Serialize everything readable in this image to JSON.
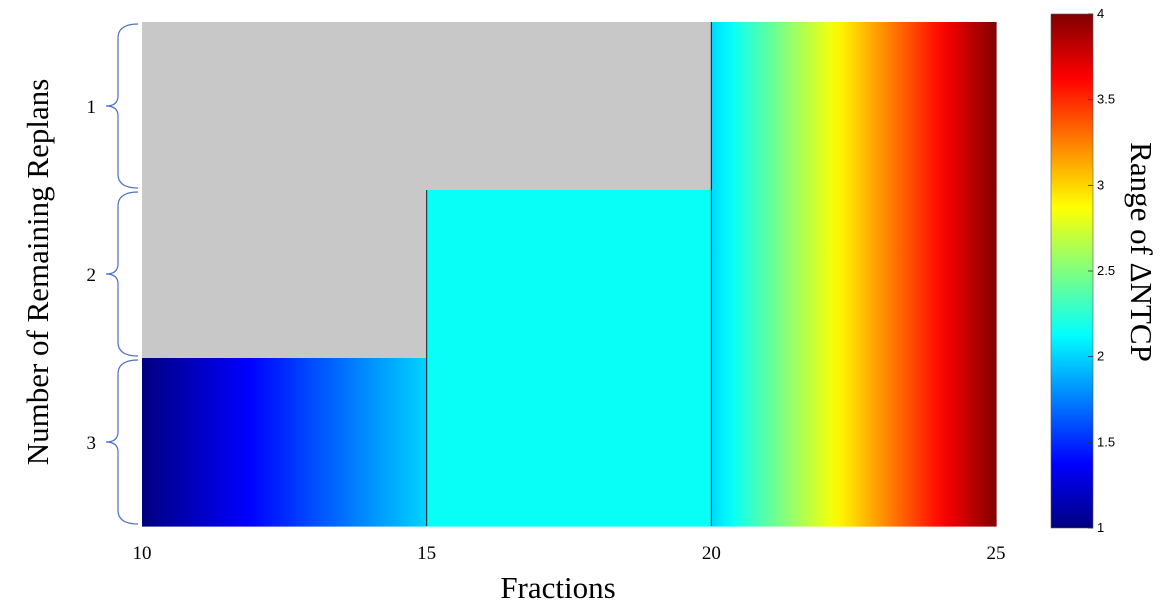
{
  "chart_data": {
    "type": "heatmap",
    "xlabel": "Fractions",
    "ylabel": "Number of Remaining Replans",
    "colorbar_label": "Range of ΔNTCP",
    "x_ticks": [
      10,
      15,
      20,
      25
    ],
    "xlim": [
      10,
      25
    ],
    "y_categories": [
      "1",
      "2",
      "3"
    ],
    "colorbar": {
      "colormap": "jet",
      "range": [
        1,
        4
      ],
      "ticks": [
        "1",
        "1.5",
        "2",
        "2.5",
        "3",
        "3.5",
        "4"
      ]
    },
    "cells": [
      {
        "replans": "1",
        "x_range": [
          10,
          20
        ],
        "value": null
      },
      {
        "replans": "1",
        "x_range": [
          20,
          25
        ],
        "value_range": [
          2,
          4
        ]
      },
      {
        "replans": "2",
        "x_range": [
          10,
          15
        ],
        "value": null
      },
      {
        "replans": "2",
        "x_range": [
          15,
          20
        ],
        "value": 2.15
      },
      {
        "replans": "2",
        "x_range": [
          20,
          25
        ],
        "value_range": [
          2,
          4
        ]
      },
      {
        "replans": "3",
        "x_range": [
          10,
          15
        ],
        "value_range": [
          1,
          2
        ]
      },
      {
        "replans": "3",
        "x_range": [
          15,
          20
        ],
        "value": 2.15
      },
      {
        "replans": "3",
        "x_range": [
          20,
          25
        ],
        "value_range": [
          2,
          4
        ]
      }
    ],
    "infeasible_color": "#c8c8c8",
    "boundary_lines_x": [
      15,
      20
    ]
  }
}
